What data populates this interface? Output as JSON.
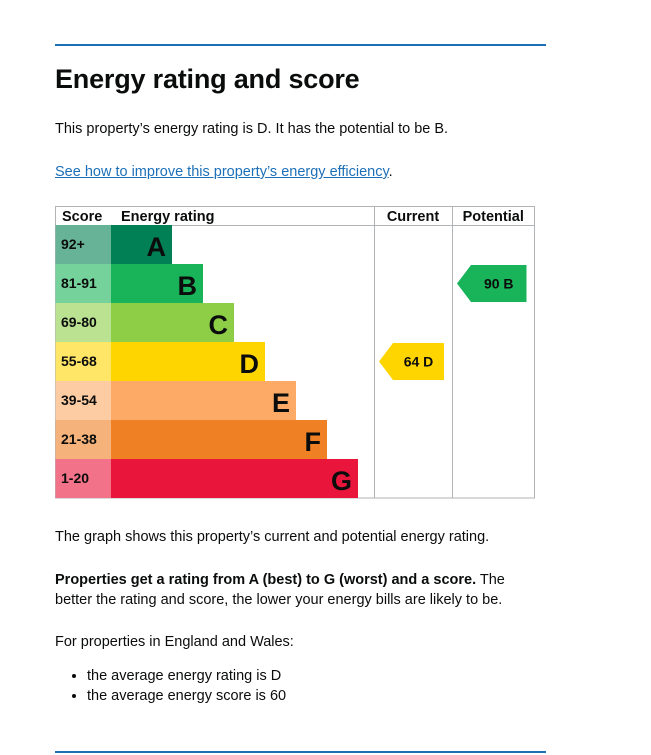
{
  "heading": "Energy rating and score",
  "intro": "This property’s energy rating is D. It has the potential to be B.",
  "improve_link": "See how to improve this property’s energy efficiency",
  "improve_link_suffix": ".",
  "chart": {
    "headers": {
      "score": "Score",
      "rating": "Energy rating",
      "current": "Current",
      "potential": "Potential"
    },
    "bands": [
      {
        "score": "92+",
        "letter": "A",
        "color": "#008054",
        "score_bg": "#66b397"
      },
      {
        "score": "81-91",
        "letter": "B",
        "color": "#19b459",
        "score_bg": "#75d29b"
      },
      {
        "score": "69-80",
        "letter": "C",
        "color": "#8dce46",
        "score_bg": "#bbe290"
      },
      {
        "score": "55-68",
        "letter": "D",
        "color": "#ffd500",
        "score_bg": "#ffe666"
      },
      {
        "score": "39-54",
        "letter": "E",
        "color": "#fcaa65",
        "score_bg": "#fdcca3"
      },
      {
        "score": "21-38",
        "letter": "F",
        "color": "#ef8023",
        "score_bg": "#f5b37b"
      },
      {
        "score": "1-20",
        "letter": "G",
        "color": "#e9153b",
        "score_bg": "#f27389"
      }
    ],
    "current": {
      "value": 64,
      "letter": "D",
      "label": "64  D",
      "color": "#ffd500"
    },
    "potential": {
      "value": 90,
      "letter": "B",
      "label": "90  B",
      "color": "#19b459"
    }
  },
  "graph_note": "The graph shows this property’s current and potential energy rating.",
  "rating_note_bold": "Properties get a rating from A (best) to G (worst) and a score.",
  "rating_note_rest": " The better the rating and score, the lower your energy bills are likely to be.",
  "ew_note": "For properties in England and Wales:",
  "averages": [
    "the average energy rating is D",
    "the average energy score is 60"
  ]
}
